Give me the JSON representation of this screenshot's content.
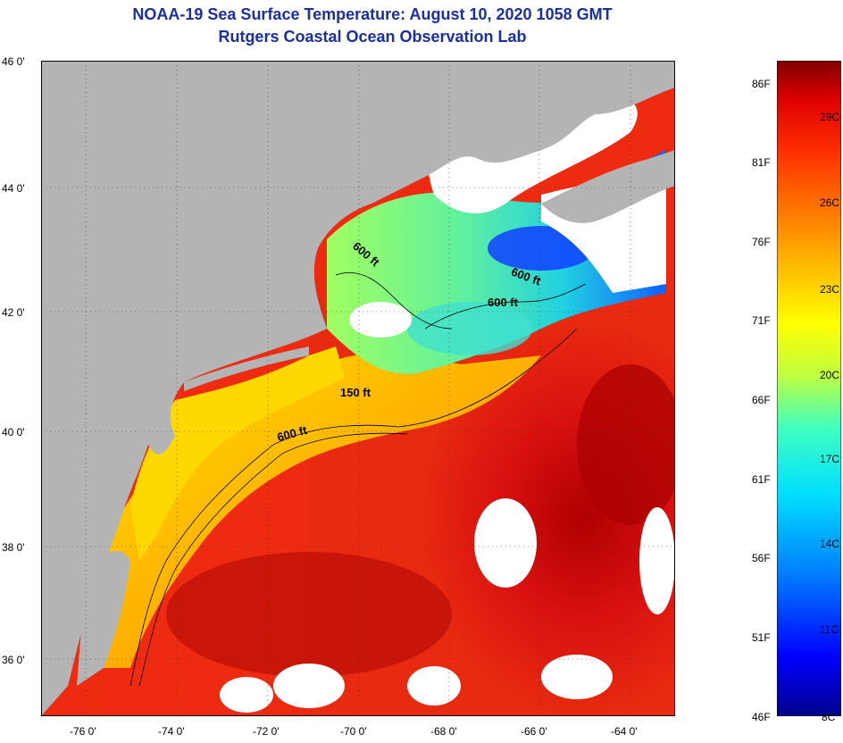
{
  "title": "NOAA-19 Sea Surface Temperature:  August 10, 2020 1058 GMT",
  "subtitle": "Rutgers Coastal Ocean Observation Lab",
  "lat_labels": [
    "46 0'",
    "44 0'",
    "42 0'",
    "40 0'",
    "38 0'",
    "36 0'"
  ],
  "lon_labels": [
    "-76 0'",
    "-74 0'",
    "-72 0'",
    "-70 0'",
    "-68 0'",
    "-66 0'",
    "-64 0'"
  ],
  "colorbar": {
    "fahrenheit": [
      "86F",
      "81F",
      "76F",
      "71F",
      "66F",
      "61F",
      "56F",
      "51F",
      "46F"
    ],
    "celsius": [
      "29C",
      "26C",
      "23C",
      "20C",
      "17C",
      "14C",
      "11C",
      "8C"
    ],
    "colors": [
      "#00008b",
      "#0000ff",
      "#0080ff",
      "#00e0ff",
      "#40ffc0",
      "#c0ff40",
      "#ffff00",
      "#ffc000",
      "#ff8000",
      "#ff3000",
      "#e00000",
      "#800000"
    ]
  },
  "contours": [
    "600 ft",
    "600 ft",
    "600 ft",
    "150 ft",
    "600 ft"
  ],
  "colors": {
    "land": "#b4b4b4",
    "cloud": "#ffffff",
    "title": "#1a2fa0"
  }
}
